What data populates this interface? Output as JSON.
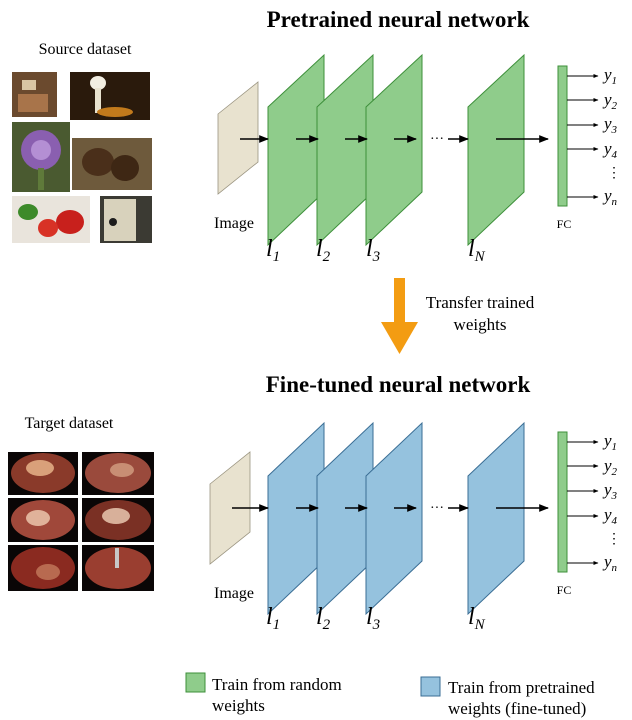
{
  "top": {
    "title": "Pretrained neural network",
    "dataset_label": "Source dataset",
    "input_label": "Image",
    "fc_label": "FC",
    "layer_labels": [
      "l",
      "l",
      "l",
      "l"
    ],
    "layer_subs": [
      "1",
      "2",
      "3",
      "N"
    ],
    "outputs": [
      "y",
      "y",
      "y",
      "y",
      "y"
    ],
    "output_subs": [
      "1",
      "2",
      "3",
      "4",
      "n"
    ],
    "ellipsis": "···",
    "vdots": "⋮"
  },
  "transfer": {
    "line1": "Transfer trained",
    "line2": "weights"
  },
  "bottom": {
    "title": "Fine-tuned neural network",
    "dataset_label": "Target dataset",
    "input_label": "Image",
    "fc_label": "FC",
    "layer_labels": [
      "l",
      "l",
      "l",
      "l"
    ],
    "layer_subs": [
      "1",
      "2",
      "3",
      "N"
    ],
    "outputs": [
      "y",
      "y",
      "y",
      "y",
      "y"
    ],
    "output_subs": [
      "1",
      "2",
      "3",
      "4",
      "n"
    ],
    "ellipsis": "···",
    "vdots": "⋮"
  },
  "legend": {
    "green_line1": "Train from random",
    "green_line2": "weights",
    "blue_line1": "Train from pretrained",
    "blue_line2": "weights (fine-tuned)"
  },
  "colors": {
    "green": "#8fcc8b",
    "green_stroke": "#3d8f3a",
    "blue": "#95c2de",
    "blue_stroke": "#3a6d94",
    "input": "#e8e2cf",
    "arrow_orange": "#f39c12"
  }
}
